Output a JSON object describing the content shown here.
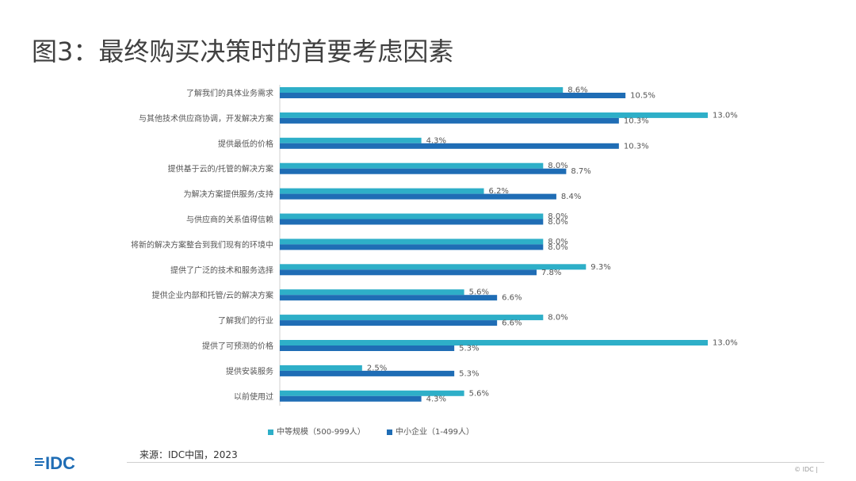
{
  "title": "图3：最终购买决策时的首要考虑因素",
  "chart_data": {
    "type": "bar",
    "orientation": "horizontal",
    "title": "图3：最终购买决策时的首要考虑因素",
    "categories": [
      "了解我们的具体业务需求",
      "与其他技术供应商协调，开发解决方案",
      "提供最低的价格",
      "提供基于云的/托管的解决方案",
      "为解决方案提供服务/支持",
      "与供应商的关系值得信赖",
      "将新的解决方案整合到我们现有的环境中",
      "提供了广泛的技术和服务选择",
      "提供企业内部和托管/云的解决方案",
      "了解我们的行业",
      "提供了可预测的价格",
      "提供安装服务",
      "以前使用过"
    ],
    "series": [
      {
        "name": "中等规模（500-999人）",
        "color": "#2eafc8",
        "values": [
          8.6,
          13.0,
          4.3,
          8.0,
          6.2,
          8.0,
          8.0,
          9.3,
          5.6,
          8.0,
          13.0,
          2.5,
          5.6
        ]
      },
      {
        "name": "中小企业（1-499人）",
        "color": "#1f6db5",
        "values": [
          10.5,
          10.3,
          10.3,
          8.7,
          8.4,
          8.0,
          8.0,
          7.8,
          6.6,
          6.6,
          5.3,
          5.3,
          4.3
        ]
      }
    ],
    "value_suffix": "%",
    "xlim": [
      0,
      13.0
    ],
    "legend_position": "bottom"
  },
  "source": "来源：IDC中国，2023",
  "logo_text": "IDC",
  "copyright": "© IDC |"
}
